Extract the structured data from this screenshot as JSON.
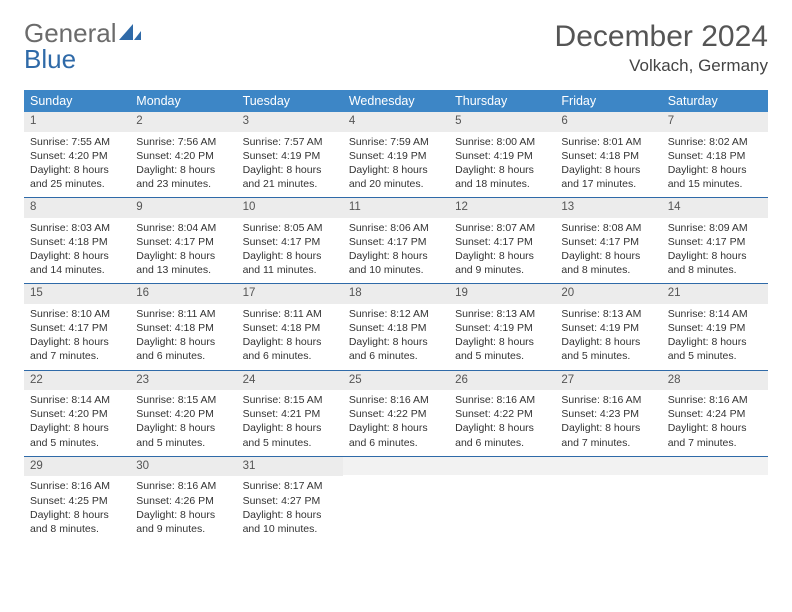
{
  "brand": {
    "word1": "General",
    "word2": "Blue"
  },
  "title": "December 2024",
  "location": "Volkach, Germany",
  "colors": {
    "header_bg": "#3d86c6",
    "header_text": "#ffffff",
    "rule": "#2f6aa8",
    "datenum_bg": "#ececec",
    "logo_gray": "#6b6b6b",
    "logo_blue": "#2f6aa8"
  },
  "day_names": [
    "Sunday",
    "Monday",
    "Tuesday",
    "Wednesday",
    "Thursday",
    "Friday",
    "Saturday"
  ],
  "weeks": [
    [
      {
        "n": "1",
        "sr": "Sunrise: 7:55 AM",
        "ss": "Sunset: 4:20 PM",
        "d1": "Daylight: 8 hours",
        "d2": "and 25 minutes."
      },
      {
        "n": "2",
        "sr": "Sunrise: 7:56 AM",
        "ss": "Sunset: 4:20 PM",
        "d1": "Daylight: 8 hours",
        "d2": "and 23 minutes."
      },
      {
        "n": "3",
        "sr": "Sunrise: 7:57 AM",
        "ss": "Sunset: 4:19 PM",
        "d1": "Daylight: 8 hours",
        "d2": "and 21 minutes."
      },
      {
        "n": "4",
        "sr": "Sunrise: 7:59 AM",
        "ss": "Sunset: 4:19 PM",
        "d1": "Daylight: 8 hours",
        "d2": "and 20 minutes."
      },
      {
        "n": "5",
        "sr": "Sunrise: 8:00 AM",
        "ss": "Sunset: 4:19 PM",
        "d1": "Daylight: 8 hours",
        "d2": "and 18 minutes."
      },
      {
        "n": "6",
        "sr": "Sunrise: 8:01 AM",
        "ss": "Sunset: 4:18 PM",
        "d1": "Daylight: 8 hours",
        "d2": "and 17 minutes."
      },
      {
        "n": "7",
        "sr": "Sunrise: 8:02 AM",
        "ss": "Sunset: 4:18 PM",
        "d1": "Daylight: 8 hours",
        "d2": "and 15 minutes."
      }
    ],
    [
      {
        "n": "8",
        "sr": "Sunrise: 8:03 AM",
        "ss": "Sunset: 4:18 PM",
        "d1": "Daylight: 8 hours",
        "d2": "and 14 minutes."
      },
      {
        "n": "9",
        "sr": "Sunrise: 8:04 AM",
        "ss": "Sunset: 4:17 PM",
        "d1": "Daylight: 8 hours",
        "d2": "and 13 minutes."
      },
      {
        "n": "10",
        "sr": "Sunrise: 8:05 AM",
        "ss": "Sunset: 4:17 PM",
        "d1": "Daylight: 8 hours",
        "d2": "and 11 minutes."
      },
      {
        "n": "11",
        "sr": "Sunrise: 8:06 AM",
        "ss": "Sunset: 4:17 PM",
        "d1": "Daylight: 8 hours",
        "d2": "and 10 minutes."
      },
      {
        "n": "12",
        "sr": "Sunrise: 8:07 AM",
        "ss": "Sunset: 4:17 PM",
        "d1": "Daylight: 8 hours",
        "d2": "and 9 minutes."
      },
      {
        "n": "13",
        "sr": "Sunrise: 8:08 AM",
        "ss": "Sunset: 4:17 PM",
        "d1": "Daylight: 8 hours",
        "d2": "and 8 minutes."
      },
      {
        "n": "14",
        "sr": "Sunrise: 8:09 AM",
        "ss": "Sunset: 4:17 PM",
        "d1": "Daylight: 8 hours",
        "d2": "and 8 minutes."
      }
    ],
    [
      {
        "n": "15",
        "sr": "Sunrise: 8:10 AM",
        "ss": "Sunset: 4:17 PM",
        "d1": "Daylight: 8 hours",
        "d2": "and 7 minutes."
      },
      {
        "n": "16",
        "sr": "Sunrise: 8:11 AM",
        "ss": "Sunset: 4:18 PM",
        "d1": "Daylight: 8 hours",
        "d2": "and 6 minutes."
      },
      {
        "n": "17",
        "sr": "Sunrise: 8:11 AM",
        "ss": "Sunset: 4:18 PM",
        "d1": "Daylight: 8 hours",
        "d2": "and 6 minutes."
      },
      {
        "n": "18",
        "sr": "Sunrise: 8:12 AM",
        "ss": "Sunset: 4:18 PM",
        "d1": "Daylight: 8 hours",
        "d2": "and 6 minutes."
      },
      {
        "n": "19",
        "sr": "Sunrise: 8:13 AM",
        "ss": "Sunset: 4:19 PM",
        "d1": "Daylight: 8 hours",
        "d2": "and 5 minutes."
      },
      {
        "n": "20",
        "sr": "Sunrise: 8:13 AM",
        "ss": "Sunset: 4:19 PM",
        "d1": "Daylight: 8 hours",
        "d2": "and 5 minutes."
      },
      {
        "n": "21",
        "sr": "Sunrise: 8:14 AM",
        "ss": "Sunset: 4:19 PM",
        "d1": "Daylight: 8 hours",
        "d2": "and 5 minutes."
      }
    ],
    [
      {
        "n": "22",
        "sr": "Sunrise: 8:14 AM",
        "ss": "Sunset: 4:20 PM",
        "d1": "Daylight: 8 hours",
        "d2": "and 5 minutes."
      },
      {
        "n": "23",
        "sr": "Sunrise: 8:15 AM",
        "ss": "Sunset: 4:20 PM",
        "d1": "Daylight: 8 hours",
        "d2": "and 5 minutes."
      },
      {
        "n": "24",
        "sr": "Sunrise: 8:15 AM",
        "ss": "Sunset: 4:21 PM",
        "d1": "Daylight: 8 hours",
        "d2": "and 5 minutes."
      },
      {
        "n": "25",
        "sr": "Sunrise: 8:16 AM",
        "ss": "Sunset: 4:22 PM",
        "d1": "Daylight: 8 hours",
        "d2": "and 6 minutes."
      },
      {
        "n": "26",
        "sr": "Sunrise: 8:16 AM",
        "ss": "Sunset: 4:22 PM",
        "d1": "Daylight: 8 hours",
        "d2": "and 6 minutes."
      },
      {
        "n": "27",
        "sr": "Sunrise: 8:16 AM",
        "ss": "Sunset: 4:23 PM",
        "d1": "Daylight: 8 hours",
        "d2": "and 7 minutes."
      },
      {
        "n": "28",
        "sr": "Sunrise: 8:16 AM",
        "ss": "Sunset: 4:24 PM",
        "d1": "Daylight: 8 hours",
        "d2": "and 7 minutes."
      }
    ],
    [
      {
        "n": "29",
        "sr": "Sunrise: 8:16 AM",
        "ss": "Sunset: 4:25 PM",
        "d1": "Daylight: 8 hours",
        "d2": "and 8 minutes."
      },
      {
        "n": "30",
        "sr": "Sunrise: 8:16 AM",
        "ss": "Sunset: 4:26 PM",
        "d1": "Daylight: 8 hours",
        "d2": "and 9 minutes."
      },
      {
        "n": "31",
        "sr": "Sunrise: 8:17 AM",
        "ss": "Sunset: 4:27 PM",
        "d1": "Daylight: 8 hours",
        "d2": "and 10 minutes."
      },
      null,
      null,
      null,
      null
    ]
  ]
}
